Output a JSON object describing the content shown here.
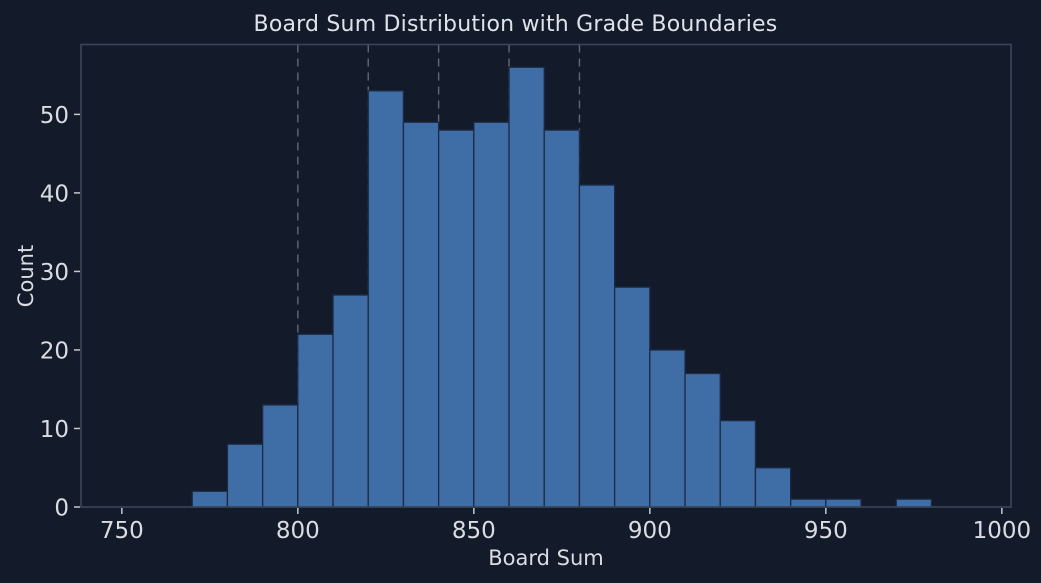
{
  "chart_data": {
    "type": "bar",
    "subtype": "histogram",
    "title": "Board Sum Distribution with Grade Boundaries",
    "xlabel": "Board Sum",
    "ylabel": "Count",
    "bin_start": 770,
    "bin_width": 10,
    "counts": [
      2,
      8,
      13,
      22,
      27,
      53,
      49,
      48,
      49,
      56,
      48,
      41,
      28,
      20,
      17,
      11,
      5,
      1,
      1,
      0,
      1
    ],
    "total_observations": 500,
    "grade_boundaries": [
      800,
      820,
      840,
      860,
      880
    ],
    "xticks": [
      750,
      800,
      850,
      900,
      950,
      1000
    ],
    "yticks": [
      0,
      10,
      20,
      30,
      40,
      50
    ],
    "xlim": [
      738.4,
      1002.6
    ],
    "ylim": [
      0,
      58.9
    ],
    "grid": false,
    "legend": null,
    "colors": {
      "figure_bg": "#131a29",
      "bar_fill": "#3f6da6",
      "bar_edge": "#1c2a45",
      "boundary_line": "#6b7689",
      "spine": "#3b4759",
      "tick_mark": "#c2c9d2",
      "text": "#d9dde3"
    }
  }
}
